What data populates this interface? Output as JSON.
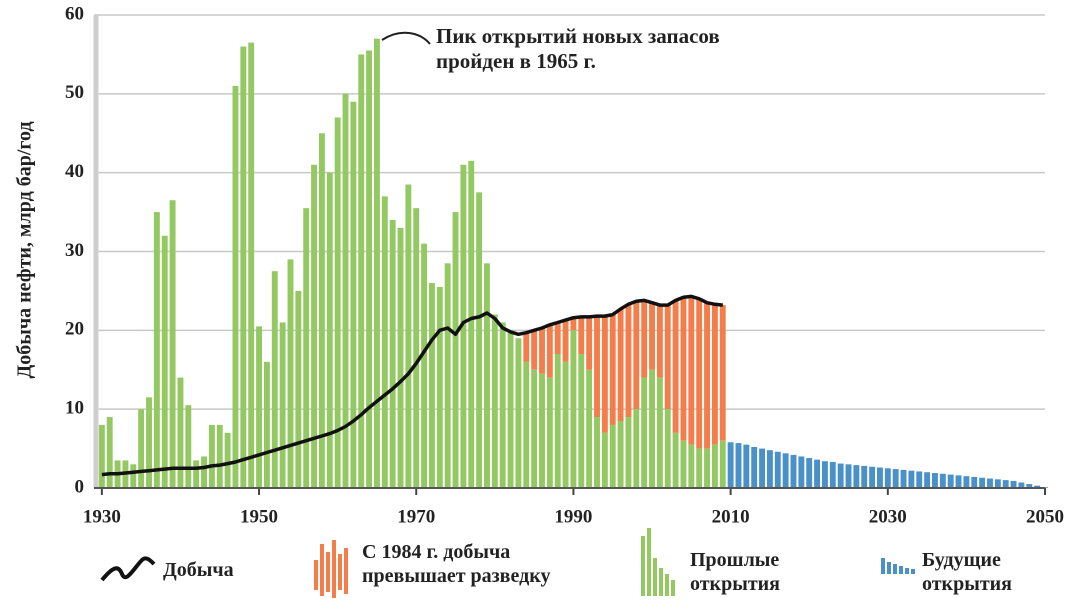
{
  "chart_data": {
    "type": "bar",
    "ylabel": "Добыча нефти, млрд бар/год",
    "annotation": [
      "Пик открытий новых запасов",
      "пройден в 1965 г."
    ],
    "xlim": [
      1929,
      2050
    ],
    "xticks": [
      1930,
      1950,
      1970,
      1990,
      2010,
      2030,
      2050
    ],
    "ylim": [
      0,
      60
    ],
    "yticks": [
      0,
      10,
      20,
      30,
      40,
      50,
      60
    ],
    "grid": true,
    "series": [
      {
        "name": "Добыча",
        "type": "line",
        "color": "#111111",
        "x": [
          1930,
          1931,
          1932,
          1933,
          1934,
          1935,
          1936,
          1937,
          1938,
          1939,
          1940,
          1941,
          1942,
          1943,
          1944,
          1945,
          1946,
          1947,
          1948,
          1949,
          1950,
          1951,
          1952,
          1953,
          1954,
          1955,
          1956,
          1957,
          1958,
          1959,
          1960,
          1961,
          1962,
          1963,
          1964,
          1965,
          1966,
          1967,
          1968,
          1969,
          1970,
          1971,
          1972,
          1973,
          1974,
          1975,
          1976,
          1977,
          1978,
          1979,
          1980,
          1981,
          1982,
          1983,
          1984,
          1985,
          1986,
          1987,
          1988,
          1989,
          1990,
          1991,
          1992,
          1993,
          1994,
          1995,
          1996,
          1997,
          1998,
          1999,
          2000,
          2001,
          2002,
          2003,
          2004,
          2005,
          2006,
          2007,
          2008,
          2009
        ],
        "values": [
          1.7,
          1.8,
          1.8,
          1.9,
          2.0,
          2.1,
          2.2,
          2.3,
          2.4,
          2.5,
          2.5,
          2.5,
          2.5,
          2.6,
          2.8,
          2.9,
          3.1,
          3.3,
          3.6,
          3.9,
          4.2,
          4.5,
          4.8,
          5.1,
          5.4,
          5.7,
          6.0,
          6.3,
          6.6,
          6.9,
          7.3,
          7.8,
          8.5,
          9.3,
          10.2,
          11.0,
          11.8,
          12.6,
          13.5,
          14.5,
          15.8,
          17.3,
          18.8,
          20.0,
          20.3,
          19.5,
          21.0,
          21.5,
          21.7,
          22.2,
          21.5,
          20.3,
          19.8,
          19.5,
          19.7,
          20.0,
          20.3,
          20.7,
          21.0,
          21.3,
          21.6,
          21.7,
          21.7,
          21.8,
          21.8,
          22.0,
          22.7,
          23.3,
          23.7,
          23.8,
          23.5,
          23.2,
          23.2,
          23.8,
          24.2,
          24.3,
          24.0,
          23.5,
          23.3,
          23.2
        ]
      },
      {
        "name": "С 1984 г. добыча превышает разведку",
        "type": "bar",
        "color": "#f37e4c",
        "x": [
          1984,
          1985,
          1986,
          1987,
          1988,
          1989,
          1990,
          1991,
          1992,
          1993,
          1994,
          1995,
          1996,
          1997,
          1998,
          1999,
          2000,
          2001,
          2002,
          2003,
          2004,
          2005,
          2006,
          2007,
          2008,
          2009
        ],
        "values": [
          3.7,
          5.0,
          5.8,
          6.7,
          4.0,
          5.3,
          1.6,
          4.7,
          6.7,
          12.8,
          14.8,
          14.0,
          14.2,
          14.3,
          13.7,
          9.8,
          8.5,
          9.2,
          13.2,
          16.8,
          18.2,
          18.8,
          19.0,
          18.5,
          17.8,
          17.2
        ]
      },
      {
        "name": "Прошлые открытия",
        "type": "bar",
        "color": "#93c863",
        "x": [
          1930,
          1931,
          1932,
          1933,
          1934,
          1935,
          1936,
          1937,
          1938,
          1939,
          1940,
          1941,
          1942,
          1943,
          1944,
          1945,
          1946,
          1947,
          1948,
          1949,
          1950,
          1951,
          1952,
          1953,
          1954,
          1955,
          1956,
          1957,
          1958,
          1959,
          1960,
          1961,
          1962,
          1963,
          1964,
          1965,
          1966,
          1967,
          1968,
          1969,
          1970,
          1971,
          1972,
          1973,
          1974,
          1975,
          1976,
          1977,
          1978,
          1979,
          1980,
          1981,
          1982,
          1983,
          1984,
          1985,
          1986,
          1987,
          1988,
          1989,
          1990,
          1991,
          1992,
          1993,
          1994,
          1995,
          1996,
          1997,
          1998,
          1999,
          2000,
          2001,
          2002,
          2003,
          2004,
          2005,
          2006,
          2007,
          2008,
          2009
        ],
        "values": [
          8,
          9,
          3.5,
          3.5,
          3,
          10,
          11.5,
          35,
          32,
          36.5,
          14,
          10.5,
          3.5,
          4,
          8,
          8,
          7,
          51,
          56,
          56.5,
          20.5,
          16,
          27.5,
          21,
          29,
          25,
          35.5,
          41,
          45,
          40,
          47,
          50,
          49,
          55,
          55.5,
          57,
          37,
          34,
          33,
          38.5,
          35.5,
          31,
          26,
          25.5,
          28.5,
          35,
          41,
          41.5,
          37.5,
          28.5,
          22,
          21,
          20,
          19,
          16,
          15,
          14.5,
          14,
          17,
          16,
          20,
          17,
          15,
          9,
          7,
          8,
          8.5,
          9,
          10,
          14,
          15,
          14,
          10,
          7,
          6,
          5.5,
          5,
          5,
          5.5,
          6
        ]
      },
      {
        "name": "Будущие открытия",
        "type": "bar",
        "color": "#4a90c9",
        "x": [
          2010,
          2011,
          2012,
          2013,
          2014,
          2015,
          2016,
          2017,
          2018,
          2019,
          2020,
          2021,
          2022,
          2023,
          2024,
          2025,
          2026,
          2027,
          2028,
          2029,
          2030,
          2031,
          2032,
          2033,
          2034,
          2035,
          2036,
          2037,
          2038,
          2039,
          2040,
          2041,
          2042,
          2043,
          2044,
          2045,
          2046,
          2047,
          2048,
          2049,
          2050
        ],
        "values": [
          5.8,
          5.7,
          5.5,
          5.2,
          5.0,
          4.8,
          4.6,
          4.4,
          4.2,
          4.0,
          3.8,
          3.6,
          3.4,
          3.3,
          3.1,
          3.0,
          2.9,
          2.8,
          2.7,
          2.6,
          2.5,
          2.4,
          2.3,
          2.2,
          2.1,
          2.0,
          1.9,
          1.8,
          1.7,
          1.6,
          1.5,
          1.4,
          1.3,
          1.2,
          1.1,
          1.0,
          0.9,
          0.7,
          0.5,
          0.3,
          0.1
        ]
      }
    ]
  }
}
